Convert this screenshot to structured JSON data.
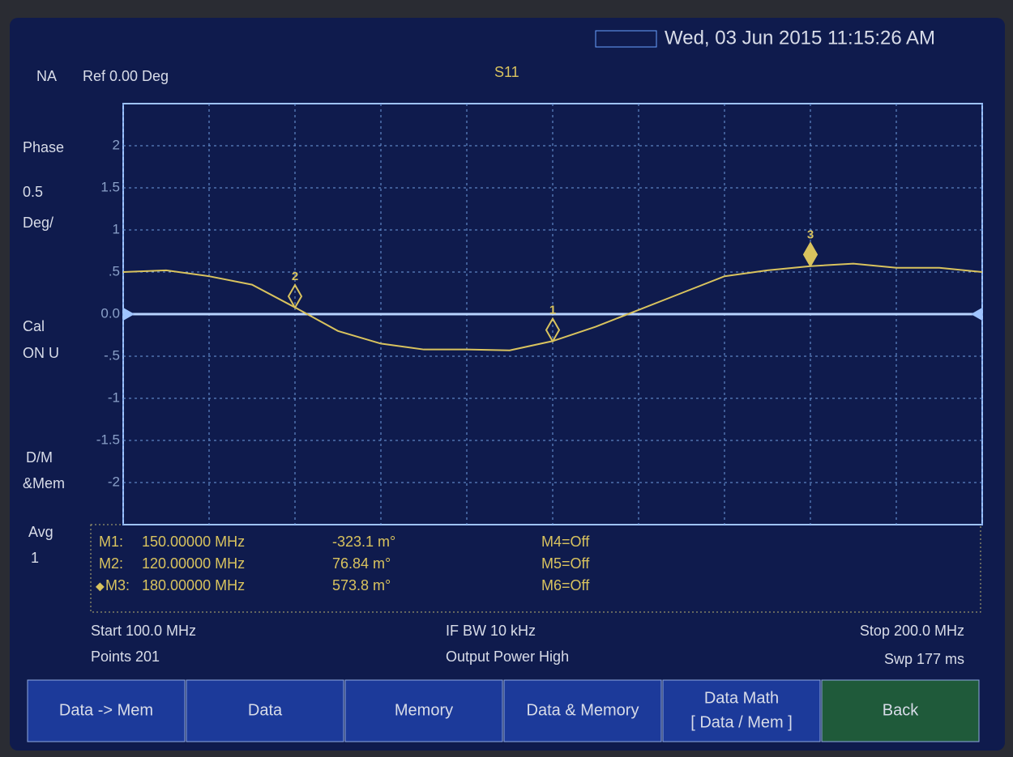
{
  "header": {
    "mode": "NA",
    "ref": "Ref 0.00 Deg",
    "measurement": "S11",
    "datetime": "Wed, 03 Jun 2015 11:15:26 AM"
  },
  "side_labels": [
    "Phase",
    "0.5",
    "Deg/",
    "Cal",
    "ON U",
    "D/M",
    "&Mem",
    "Avg",
    "1"
  ],
  "chart_data": {
    "type": "line",
    "x": [
      100,
      105,
      110,
      115,
      120,
      125,
      130,
      135,
      140,
      145,
      150,
      155,
      160,
      165,
      170,
      175,
      180,
      185,
      190,
      195,
      200
    ],
    "values": [
      0.5,
      0.52,
      0.45,
      0.35,
      0.08,
      -0.2,
      -0.35,
      -0.42,
      -0.42,
      -0.43,
      -0.32,
      -0.15,
      0.05,
      0.25,
      0.45,
      0.52,
      0.57,
      0.6,
      0.55,
      0.55,
      0.5
    ],
    "color": "#d9c35e",
    "xlim": [
      100,
      200
    ],
    "xticks": [
      100,
      110,
      120,
      130,
      140,
      150,
      160,
      170,
      180,
      190,
      200
    ],
    "ylim": [
      -2.5,
      2.5
    ],
    "yticks": [
      2,
      1.5,
      1,
      {
        "value": 0.5,
        "label": ".5"
      },
      {
        "value": 0,
        "label": "0.0"
      },
      {
        "value": -0.5,
        "label": "-.5"
      },
      -1,
      -1.5,
      -2
    ],
    "ref": 0,
    "grid": true,
    "markers": [
      {
        "label": "1",
        "x": 150,
        "y": -0.3231,
        "active": false
      },
      {
        "label": "2",
        "x": 120,
        "y": 0.07684,
        "active": false
      },
      {
        "label": "3",
        "x": 180,
        "y": 0.5738,
        "active": true
      }
    ]
  },
  "marker_table": [
    [
      "M1:",
      "150.00000 MHz",
      "-323.1 m°",
      "M4=Off"
    ],
    [
      "M2:",
      "120.00000 MHz",
      "76.84 m°",
      "M5=Off"
    ],
    [
      "M3:",
      "180.00000 MHz",
      "573.8 m°",
      "M6=Off"
    ]
  ],
  "footer": {
    "start": "Start 100.0 MHz",
    "points": "Points 201",
    "ifbw": "IF BW 10 kHz",
    "power": "Output Power High",
    "stop": "Stop 200.0 MHz",
    "sweep": "Swp 177 ms"
  },
  "buttons": [
    [
      "Data -> Mem"
    ],
    [
      "Data"
    ],
    [
      "Memory"
    ],
    [
      "Data & Memory"
    ],
    [
      "Data Math",
      "[ Data / Mem ]"
    ],
    [
      "Back"
    ]
  ]
}
